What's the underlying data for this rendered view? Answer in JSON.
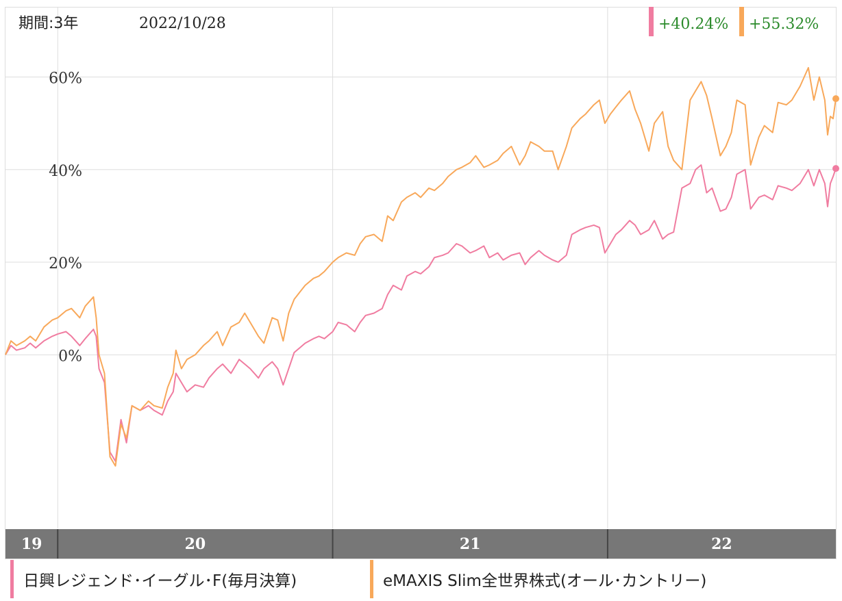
{
  "header": {
    "period": "期間:3年",
    "date": "2022/10/28"
  },
  "colors": {
    "pink": "#F07CA0",
    "orange": "#F8A85A",
    "change_text": "#2A8A2A",
    "grid": "#DDDDDD",
    "axis_bar": "#777777"
  },
  "chart_data": {
    "type": "line",
    "y_ticks": [
      "60%",
      "40%",
      "20%",
      "0%"
    ],
    "y_tick_values": [
      60,
      40,
      20,
      0
    ],
    "ylim": [
      -37.5,
      75
    ],
    "x_range": [
      2019.81,
      2022.83
    ],
    "year_ticks": [
      {
        "label": "19",
        "value": 2019.81
      },
      {
        "label": "20",
        "value": 2020.0
      },
      {
        "label": "21",
        "value": 2021.0
      },
      {
        "label": "22",
        "value": 2022.0
      }
    ],
    "legend_placement": "bottom",
    "grid": true,
    "series": [
      {
        "name": "日興レジェンド･イーグル･F(毎月決算)",
        "color": "#F07CA0",
        "change_label": "+40.24%",
        "points": [
          [
            2019.81,
            0
          ],
          [
            2019.83,
            2.0
          ],
          [
            2019.85,
            1.0
          ],
          [
            2019.88,
            1.5
          ],
          [
            2019.9,
            2.5
          ],
          [
            2019.92,
            1.5
          ],
          [
            2019.95,
            3.0
          ],
          [
            2019.98,
            4.0
          ],
          [
            2020.0,
            4.5
          ],
          [
            2020.03,
            5.0
          ],
          [
            2020.05,
            4.0
          ],
          [
            2020.08,
            2.0
          ],
          [
            2020.1,
            3.5
          ],
          [
            2020.13,
            5.5
          ],
          [
            2020.14,
            4.0
          ],
          [
            2020.15,
            -3.0
          ],
          [
            2020.17,
            -6.0
          ],
          [
            2020.19,
            -21.0
          ],
          [
            2020.21,
            -23.0
          ],
          [
            2020.23,
            -14.0
          ],
          [
            2020.25,
            -19.0
          ],
          [
            2020.27,
            -11.0
          ],
          [
            2020.3,
            -12.0
          ],
          [
            2020.33,
            -11.0
          ],
          [
            2020.35,
            -12.0
          ],
          [
            2020.38,
            -13.0
          ],
          [
            2020.4,
            -10.0
          ],
          [
            2020.42,
            -8.0
          ],
          [
            2020.43,
            -4.0
          ],
          [
            2020.45,
            -6.0
          ],
          [
            2020.47,
            -8.0
          ],
          [
            2020.5,
            -6.5
          ],
          [
            2020.53,
            -7.0
          ],
          [
            2020.55,
            -5.0
          ],
          [
            2020.58,
            -3.0
          ],
          [
            2020.6,
            -2.0
          ],
          [
            2020.63,
            -4.0
          ],
          [
            2020.66,
            -1.0
          ],
          [
            2020.68,
            -2.0
          ],
          [
            2020.7,
            -3.0
          ],
          [
            2020.73,
            -5.0
          ],
          [
            2020.75,
            -3.0
          ],
          [
            2020.78,
            -1.5
          ],
          [
            2020.8,
            -3.0
          ],
          [
            2020.82,
            -6.5
          ],
          [
            2020.84,
            -3.0
          ],
          [
            2020.86,
            0.5
          ],
          [
            2020.88,
            1.5
          ],
          [
            2020.9,
            2.5
          ],
          [
            2020.93,
            3.5
          ],
          [
            2020.95,
            4.0
          ],
          [
            2020.97,
            3.5
          ],
          [
            2021.0,
            5.0
          ],
          [
            2021.02,
            7.0
          ],
          [
            2021.05,
            6.5
          ],
          [
            2021.08,
            5.0
          ],
          [
            2021.1,
            7.0
          ],
          [
            2021.12,
            8.5
          ],
          [
            2021.15,
            9.0
          ],
          [
            2021.18,
            10.0
          ],
          [
            2021.2,
            13.0
          ],
          [
            2021.22,
            15.0
          ],
          [
            2021.25,
            14.0
          ],
          [
            2021.27,
            17.0
          ],
          [
            2021.3,
            18.0
          ],
          [
            2021.32,
            17.5
          ],
          [
            2021.35,
            19.0
          ],
          [
            2021.37,
            21.0
          ],
          [
            2021.4,
            21.5
          ],
          [
            2021.42,
            22.0
          ],
          [
            2021.45,
            24.0
          ],
          [
            2021.47,
            23.5
          ],
          [
            2021.5,
            22.0
          ],
          [
            2021.52,
            22.5
          ],
          [
            2021.55,
            23.5
          ],
          [
            2021.57,
            21.0
          ],
          [
            2021.6,
            22.0
          ],
          [
            2021.62,
            20.5
          ],
          [
            2021.65,
            21.5
          ],
          [
            2021.68,
            22.0
          ],
          [
            2021.7,
            19.5
          ],
          [
            2021.72,
            21.0
          ],
          [
            2021.75,
            22.5
          ],
          [
            2021.77,
            21.5
          ],
          [
            2021.8,
            20.5
          ],
          [
            2021.82,
            20.0
          ],
          [
            2021.85,
            21.5
          ],
          [
            2021.87,
            26.0
          ],
          [
            2021.9,
            27.0
          ],
          [
            2021.92,
            27.5
          ],
          [
            2021.95,
            28.0
          ],
          [
            2021.97,
            27.5
          ],
          [
            2021.99,
            22.0
          ],
          [
            2022.01,
            24.0
          ],
          [
            2022.03,
            26.0
          ],
          [
            2022.05,
            27.0
          ],
          [
            2022.08,
            29.0
          ],
          [
            2022.1,
            28.0
          ],
          [
            2022.12,
            26.0
          ],
          [
            2022.15,
            27.0
          ],
          [
            2022.17,
            29.0
          ],
          [
            2022.2,
            25.0
          ],
          [
            2022.22,
            26.0
          ],
          [
            2022.24,
            26.5
          ],
          [
            2022.27,
            36.0
          ],
          [
            2022.3,
            37.0
          ],
          [
            2022.32,
            40.0
          ],
          [
            2022.34,
            41.0
          ],
          [
            2022.36,
            35.0
          ],
          [
            2022.38,
            36.0
          ],
          [
            2022.41,
            31.0
          ],
          [
            2022.43,
            31.5
          ],
          [
            2022.45,
            34.0
          ],
          [
            2022.47,
            39.0
          ],
          [
            2022.5,
            40.0
          ],
          [
            2022.52,
            31.5
          ],
          [
            2022.55,
            34.0
          ],
          [
            2022.57,
            34.5
          ],
          [
            2022.6,
            33.5
          ],
          [
            2022.62,
            36.5
          ],
          [
            2022.65,
            36.0
          ],
          [
            2022.67,
            35.5
          ],
          [
            2022.7,
            37.0
          ],
          [
            2022.73,
            40.0
          ],
          [
            2022.75,
            36.5
          ],
          [
            2022.77,
            40.0
          ],
          [
            2022.79,
            37.0
          ],
          [
            2022.8,
            32.0
          ],
          [
            2022.81,
            37.0
          ],
          [
            2022.82,
            38.5
          ],
          [
            2022.83,
            40.24
          ]
        ]
      },
      {
        "name": "eMAXIS Slim全世界株式(オール･カントリー)",
        "color": "#F8A85A",
        "change_label": "+55.32%",
        "points": [
          [
            2019.81,
            0
          ],
          [
            2019.83,
            3.0
          ],
          [
            2019.85,
            2.0
          ],
          [
            2019.88,
            3.0
          ],
          [
            2019.9,
            4.0
          ],
          [
            2019.92,
            3.0
          ],
          [
            2019.95,
            6.0
          ],
          [
            2019.98,
            7.5
          ],
          [
            2020.0,
            8.0
          ],
          [
            2020.03,
            9.5
          ],
          [
            2020.05,
            10.0
          ],
          [
            2020.08,
            8.0
          ],
          [
            2020.1,
            10.5
          ],
          [
            2020.13,
            12.5
          ],
          [
            2020.14,
            8.0
          ],
          [
            2020.15,
            0.0
          ],
          [
            2020.17,
            -4.0
          ],
          [
            2020.19,
            -22.0
          ],
          [
            2020.21,
            -24.0
          ],
          [
            2020.23,
            -15.0
          ],
          [
            2020.25,
            -18.0
          ],
          [
            2020.27,
            -11.0
          ],
          [
            2020.3,
            -12.0
          ],
          [
            2020.33,
            -10.0
          ],
          [
            2020.35,
            -11.0
          ],
          [
            2020.38,
            -11.5
          ],
          [
            2020.4,
            -7.0
          ],
          [
            2020.42,
            -4.0
          ],
          [
            2020.43,
            1.0
          ],
          [
            2020.45,
            -3.0
          ],
          [
            2020.47,
            -1.0
          ],
          [
            2020.5,
            0.0
          ],
          [
            2020.53,
            2.0
          ],
          [
            2020.55,
            3.0
          ],
          [
            2020.58,
            5.0
          ],
          [
            2020.6,
            2.0
          ],
          [
            2020.63,
            6.0
          ],
          [
            2020.66,
            7.0
          ],
          [
            2020.68,
            9.0
          ],
          [
            2020.7,
            7.0
          ],
          [
            2020.73,
            4.0
          ],
          [
            2020.75,
            2.5
          ],
          [
            2020.78,
            8.0
          ],
          [
            2020.8,
            7.5
          ],
          [
            2020.82,
            3.0
          ],
          [
            2020.84,
            9.0
          ],
          [
            2020.86,
            12.0
          ],
          [
            2020.88,
            13.5
          ],
          [
            2020.9,
            15.0
          ],
          [
            2020.93,
            16.5
          ],
          [
            2020.95,
            17.0
          ],
          [
            2020.97,
            18.0
          ],
          [
            2021.0,
            20.0
          ],
          [
            2021.02,
            21.0
          ],
          [
            2021.05,
            22.0
          ],
          [
            2021.08,
            21.5
          ],
          [
            2021.1,
            24.0
          ],
          [
            2021.12,
            25.5
          ],
          [
            2021.15,
            26.0
          ],
          [
            2021.18,
            24.5
          ],
          [
            2021.2,
            30.0
          ],
          [
            2021.22,
            29.0
          ],
          [
            2021.25,
            33.0
          ],
          [
            2021.27,
            34.0
          ],
          [
            2021.3,
            35.0
          ],
          [
            2021.32,
            34.0
          ],
          [
            2021.35,
            36.0
          ],
          [
            2021.37,
            35.5
          ],
          [
            2021.4,
            37.0
          ],
          [
            2021.42,
            38.5
          ],
          [
            2021.45,
            40.0
          ],
          [
            2021.47,
            40.5
          ],
          [
            2021.5,
            41.5
          ],
          [
            2021.52,
            43.0
          ],
          [
            2021.55,
            40.5
          ],
          [
            2021.57,
            41.0
          ],
          [
            2021.6,
            42.0
          ],
          [
            2021.62,
            43.5
          ],
          [
            2021.65,
            45.0
          ],
          [
            2021.68,
            41.0
          ],
          [
            2021.7,
            43.0
          ],
          [
            2021.72,
            46.0
          ],
          [
            2021.75,
            45.0
          ],
          [
            2021.77,
            44.0
          ],
          [
            2021.8,
            44.0
          ],
          [
            2021.82,
            40.0
          ],
          [
            2021.85,
            45.0
          ],
          [
            2021.87,
            49.0
          ],
          [
            2021.9,
            51.0
          ],
          [
            2021.92,
            52.0
          ],
          [
            2021.95,
            54.0
          ],
          [
            2021.97,
            55.0
          ],
          [
            2021.99,
            50.0
          ],
          [
            2022.01,
            52.0
          ],
          [
            2022.03,
            53.5
          ],
          [
            2022.05,
            55.0
          ],
          [
            2022.08,
            57.0
          ],
          [
            2022.1,
            53.0
          ],
          [
            2022.12,
            50.0
          ],
          [
            2022.15,
            44.0
          ],
          [
            2022.17,
            50.0
          ],
          [
            2022.2,
            52.5
          ],
          [
            2022.22,
            45.0
          ],
          [
            2022.24,
            42.0
          ],
          [
            2022.27,
            40.0
          ],
          [
            2022.3,
            55.0
          ],
          [
            2022.32,
            57.0
          ],
          [
            2022.34,
            59.0
          ],
          [
            2022.36,
            56.0
          ],
          [
            2022.38,
            51.0
          ],
          [
            2022.41,
            43.0
          ],
          [
            2022.43,
            45.0
          ],
          [
            2022.45,
            48.0
          ],
          [
            2022.47,
            55.0
          ],
          [
            2022.5,
            54.0
          ],
          [
            2022.52,
            41.0
          ],
          [
            2022.55,
            47.0
          ],
          [
            2022.57,
            49.5
          ],
          [
            2022.6,
            48.0
          ],
          [
            2022.62,
            54.5
          ],
          [
            2022.65,
            54.0
          ],
          [
            2022.67,
            55.0
          ],
          [
            2022.7,
            58.0
          ],
          [
            2022.73,
            62.0
          ],
          [
            2022.75,
            55.0
          ],
          [
            2022.77,
            60.0
          ],
          [
            2022.79,
            55.0
          ],
          [
            2022.8,
            47.5
          ],
          [
            2022.81,
            51.5
          ],
          [
            2022.82,
            51.0
          ],
          [
            2022.83,
            55.32
          ]
        ]
      }
    ]
  }
}
